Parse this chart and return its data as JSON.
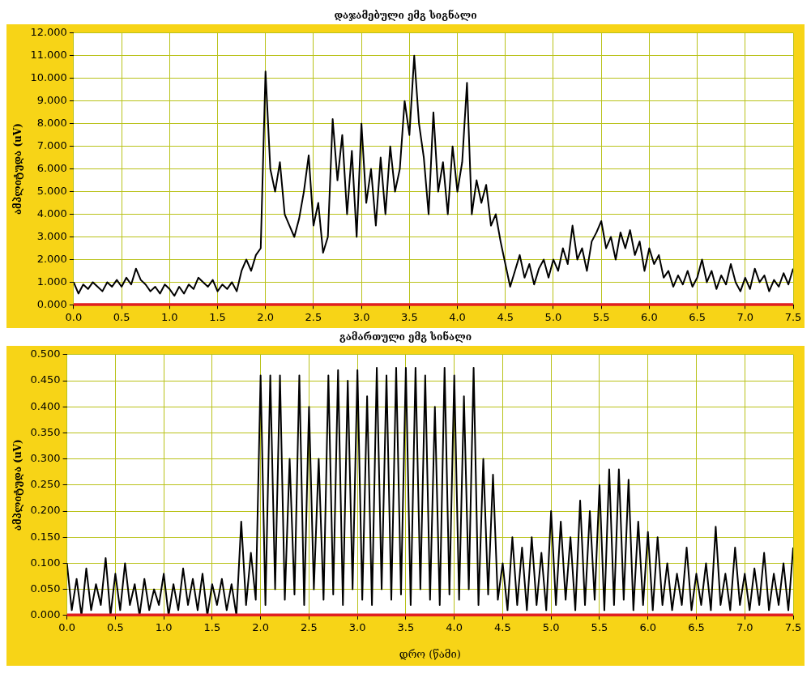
{
  "chart_data": [
    {
      "type": "line",
      "title": "დაჯამებული ემგ სიგნალი",
      "ylabel": "ამპლიტუდა (uV)",
      "xlim": [
        0,
        7.5
      ],
      "ylim": [
        0,
        12
      ],
      "grid": true,
      "legend": false,
      "marker": "none",
      "line_style": "solid",
      "xticks": [
        {
          "value": 0,
          "label": "0.0"
        },
        0.5,
        {
          "value": 1,
          "label": "1.0"
        },
        1.5,
        {
          "value": 2,
          "label": "2.0"
        },
        2.5,
        {
          "value": 3,
          "label": "3.0"
        },
        3.5,
        {
          "value": 4,
          "label": "4.0"
        },
        4.5,
        {
          "value": 5,
          "label": "5.0"
        },
        5.5,
        {
          "value": 6,
          "label": "6.0"
        },
        6.5,
        {
          "value": 7,
          "label": "7.0"
        },
        7.5
      ],
      "yticks": [
        {
          "value": 0,
          "label": "0.000"
        },
        {
          "value": 1,
          "label": "1.000"
        },
        {
          "value": 2,
          "label": "2.000"
        },
        {
          "value": 3,
          "label": "3.000"
        },
        {
          "value": 4,
          "label": "4.000"
        },
        {
          "value": 5,
          "label": "5.000"
        },
        {
          "value": 6,
          "label": "6.000"
        },
        {
          "value": 7,
          "label": "7.000"
        },
        {
          "value": 8,
          "label": "8.000"
        },
        {
          "value": 9,
          "label": "9.000"
        },
        {
          "value": 10,
          "label": "10.000"
        },
        {
          "value": 11,
          "label": "11.000"
        },
        {
          "value": 12,
          "label": "12.000"
        }
      ],
      "ref_lines": [
        {
          "axis": "y",
          "value": 0,
          "color": "#e02020"
        }
      ],
      "x": [
        0,
        0.05,
        0.1,
        0.15,
        0.2,
        0.25,
        0.3,
        0.35,
        0.4,
        0.45,
        0.5,
        0.55,
        0.6,
        0.65,
        0.7,
        0.75,
        0.8,
        0.85,
        0.9,
        0.95,
        1,
        1.05,
        1.1,
        1.15,
        1.2,
        1.25,
        1.3,
        1.35,
        1.4,
        1.45,
        1.5,
        1.55,
        1.6,
        1.65,
        1.7,
        1.75,
        1.8,
        1.85,
        1.9,
        1.95,
        2,
        2.05,
        2.1,
        2.15,
        2.2,
        2.25,
        2.3,
        2.35,
        2.4,
        2.45,
        2.5,
        2.55,
        2.6,
        2.65,
        2.7,
        2.75,
        2.8,
        2.85,
        2.9,
        2.95,
        3,
        3.05,
        3.1,
        3.15,
        3.2,
        3.25,
        3.3,
        3.35,
        3.4,
        3.45,
        3.5,
        3.55,
        3.6,
        3.65,
        3.7,
        3.75,
        3.8,
        3.85,
        3.9,
        3.95,
        4,
        4.05,
        4.1,
        4.15,
        4.2,
        4.25,
        4.3,
        4.35,
        4.4,
        4.45,
        4.5,
        4.55,
        4.6,
        4.65,
        4.7,
        4.75,
        4.8,
        4.85,
        4.9,
        4.95,
        5,
        5.05,
        5.1,
        5.15,
        5.2,
        5.25,
        5.3,
        5.35,
        5.4,
        5.45,
        5.5,
        5.55,
        5.6,
        5.65,
        5.7,
        5.75,
        5.8,
        5.85,
        5.9,
        5.95,
        6,
        6.05,
        6.1,
        6.15,
        6.2,
        6.25,
        6.3,
        6.35,
        6.4,
        6.45,
        6.5,
        6.55,
        6.6,
        6.65,
        6.7,
        6.75,
        6.8,
        6.85,
        6.9,
        6.95,
        7,
        7.05,
        7.1,
        7.15,
        7.2,
        7.25,
        7.3,
        7.35,
        7.4,
        7.45,
        7.5
      ],
      "series": [
        {
          "color": "#000000",
          "values": [
            1.0,
            0.5,
            0.9,
            0.7,
            1.0,
            0.8,
            0.6,
            1.0,
            0.8,
            1.1,
            0.8,
            1.2,
            0.9,
            1.6,
            1.1,
            0.9,
            0.6,
            0.8,
            0.5,
            0.9,
            0.7,
            0.4,
            0.8,
            0.5,
            0.9,
            0.7,
            1.2,
            1.0,
            0.8,
            1.1,
            0.6,
            0.9,
            0.7,
            1.0,
            0.6,
            1.5,
            2.0,
            1.5,
            2.2,
            2.5,
            10.3,
            6,
            5,
            6.3,
            4,
            3.5,
            3,
            3.8,
            5,
            6.6,
            3.5,
            4.5,
            2.3,
            3,
            8.2,
            5.5,
            7.5,
            4,
            6.8,
            3,
            8,
            4.5,
            6,
            3.5,
            6.5,
            4,
            7,
            5,
            6,
            9,
            7.5,
            11,
            8,
            6.5,
            4,
            8.5,
            5,
            6.3,
            4,
            7,
            5,
            6.3,
            9.8,
            4,
            5.5,
            4.5,
            5.3,
            3.5,
            4,
            2.8,
            1.8,
            0.8,
            1.5,
            2.2,
            1.2,
            1.8,
            0.9,
            1.6,
            2,
            1.2,
            2,
            1.5,
            2.5,
            1.8,
            3.5,
            2,
            2.5,
            1.5,
            2.8,
            3.2,
            3.7,
            2.5,
            3,
            2,
            3.2,
            2.5,
            3.3,
            2.2,
            2.8,
            1.5,
            2.5,
            1.8,
            2.2,
            1.2,
            1.5,
            0.8,
            1.3,
            0.9,
            1.5,
            0.8,
            1.2,
            2,
            1,
            1.5,
            0.7,
            1.3,
            0.9,
            1.8,
            1,
            0.6,
            1.2,
            0.7,
            1.6,
            1,
            1.3,
            0.6,
            1.1,
            0.8,
            1.4,
            0.9,
            1.6
          ]
        }
      ]
    },
    {
      "type": "line",
      "title": "გამართული ემგ სინალი",
      "ylabel": "ამპლიტუდა (uV)",
      "xlabel": "დრო (წამი)",
      "xlim": [
        0,
        7.5
      ],
      "ylim": [
        0,
        0.5
      ],
      "grid": true,
      "legend": false,
      "marker": "none",
      "line_style": "solid",
      "xticks": [
        {
          "value": 0,
          "label": "0.0"
        },
        0.5,
        {
          "value": 1,
          "label": "1.0"
        },
        1.5,
        {
          "value": 2,
          "label": "2.0"
        },
        2.5,
        {
          "value": 3,
          "label": "3.0"
        },
        3.5,
        {
          "value": 4,
          "label": "4.0"
        },
        4.5,
        {
          "value": 5,
          "label": "5.0"
        },
        5.5,
        {
          "value": 6,
          "label": "6.0"
        },
        6.5,
        {
          "value": 7,
          "label": "7.0"
        },
        7.5
      ],
      "yticks": [
        {
          "value": 0,
          "label": "0.000"
        },
        {
          "value": 0.05,
          "label": "0.050"
        },
        {
          "value": 0.1,
          "label": "0.100"
        },
        {
          "value": 0.15,
          "label": "0.150"
        },
        {
          "value": 0.2,
          "label": "0.200"
        },
        {
          "value": 0.25,
          "label": "0.250"
        },
        {
          "value": 0.3,
          "label": "0.300"
        },
        {
          "value": 0.35,
          "label": "0.350"
        },
        {
          "value": 0.4,
          "label": "0.400"
        },
        {
          "value": 0.45,
          "label": "0.450"
        },
        {
          "value": 0.5,
          "label": "0.500"
        }
      ],
      "ref_lines": [
        {
          "axis": "y",
          "value": 0,
          "color": "#e02020"
        }
      ],
      "x": [
        0,
        0.05,
        0.1,
        0.15,
        0.2,
        0.25,
        0.3,
        0.35,
        0.4,
        0.45,
        0.5,
        0.55,
        0.6,
        0.65,
        0.7,
        0.75,
        0.8,
        0.85,
        0.9,
        0.95,
        1,
        1.05,
        1.1,
        1.15,
        1.2,
        1.25,
        1.3,
        1.35,
        1.4,
        1.45,
        1.5,
        1.55,
        1.6,
        1.65,
        1.7,
        1.75,
        1.8,
        1.85,
        1.9,
        1.95,
        2,
        2.05,
        2.1,
        2.15,
        2.2,
        2.25,
        2.3,
        2.35,
        2.4,
        2.45,
        2.5,
        2.55,
        2.6,
        2.65,
        2.7,
        2.75,
        2.8,
        2.85,
        2.9,
        2.95,
        3,
        3.05,
        3.1,
        3.15,
        3.2,
        3.25,
        3.3,
        3.35,
        3.4,
        3.45,
        3.5,
        3.55,
        3.6,
        3.65,
        3.7,
        3.75,
        3.8,
        3.85,
        3.9,
        3.95,
        4,
        4.05,
        4.1,
        4.15,
        4.2,
        4.25,
        4.3,
        4.35,
        4.4,
        4.45,
        4.5,
        4.55,
        4.6,
        4.65,
        4.7,
        4.75,
        4.8,
        4.85,
        4.9,
        4.95,
        5,
        5.05,
        5.1,
        5.15,
        5.2,
        5.25,
        5.3,
        5.35,
        5.4,
        5.45,
        5.5,
        5.55,
        5.6,
        5.65,
        5.7,
        5.75,
        5.8,
        5.85,
        5.9,
        5.95,
        6,
        6.05,
        6.1,
        6.15,
        6.2,
        6.25,
        6.3,
        6.35,
        6.4,
        6.45,
        6.5,
        6.55,
        6.6,
        6.65,
        6.7,
        6.75,
        6.8,
        6.85,
        6.9,
        6.95,
        7,
        7.05,
        7.1,
        7.15,
        7.2,
        7.25,
        7.3,
        7.35,
        7.4,
        7.45,
        7.5
      ],
      "series": [
        {
          "color": "#000000",
          "values": [
            0.1,
            0.01,
            0.07,
            0.0,
            0.09,
            0.01,
            0.06,
            0.02,
            0.11,
            0.0,
            0.08,
            0.01,
            0.1,
            0.02,
            0.06,
            0.0,
            0.07,
            0.01,
            0.05,
            0.02,
            0.08,
            0.0,
            0.06,
            0.01,
            0.09,
            0.02,
            0.07,
            0.01,
            0.08,
            0.0,
            0.06,
            0.02,
            0.07,
            0.01,
            0.06,
            0.0,
            0.18,
            0.02,
            0.12,
            0.03,
            0.46,
            0.02,
            0.46,
            0.05,
            0.46,
            0.03,
            0.3,
            0.04,
            0.46,
            0.02,
            0.4,
            0.05,
            0.3,
            0.03,
            0.46,
            0.04,
            0.47,
            0.02,
            0.45,
            0.05,
            0.47,
            0.03,
            0.42,
            0.02,
            0.475,
            0.05,
            0.46,
            0.03,
            0.475,
            0.04,
            0.475,
            0.02,
            0.475,
            0.05,
            0.46,
            0.03,
            0.4,
            0.02,
            0.475,
            0.04,
            0.46,
            0.03,
            0.42,
            0.05,
            0.475,
            0.02,
            0.3,
            0.04,
            0.27,
            0.03,
            0.1,
            0.01,
            0.15,
            0.02,
            0.13,
            0.01,
            0.15,
            0.02,
            0.12,
            0.01,
            0.2,
            0.02,
            0.18,
            0.03,
            0.15,
            0.01,
            0.22,
            0.02,
            0.2,
            0.03,
            0.25,
            0.01,
            0.28,
            0.02,
            0.28,
            0.03,
            0.26,
            0.01,
            0.18,
            0.02,
            0.16,
            0.01,
            0.15,
            0.02,
            0.1,
            0.01,
            0.08,
            0.02,
            0.13,
            0.01,
            0.08,
            0.02,
            0.1,
            0.01,
            0.17,
            0.02,
            0.08,
            0.01,
            0.13,
            0.02,
            0.08,
            0.01,
            0.09,
            0.02,
            0.12,
            0.01,
            0.08,
            0.02,
            0.1,
            0.01,
            0.13
          ]
        }
      ]
    }
  ]
}
